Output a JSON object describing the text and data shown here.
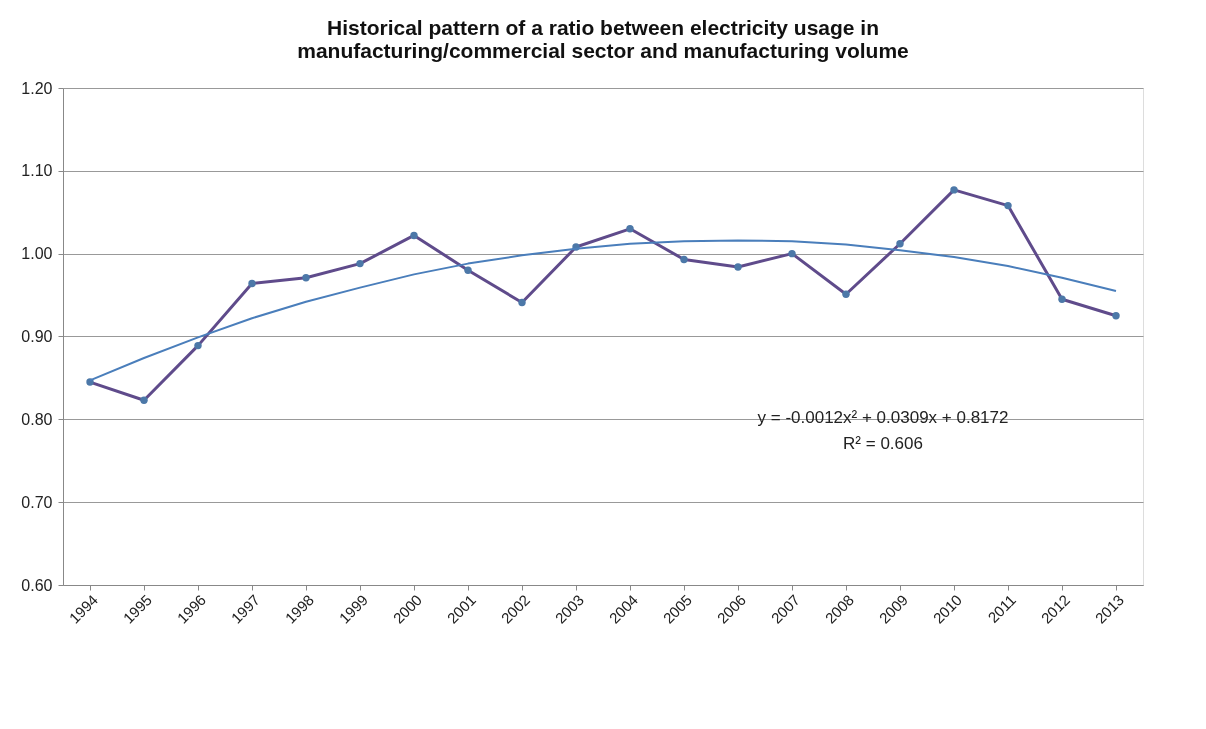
{
  "chart_data": {
    "type": "line",
    "title": "Historical pattern of a ratio between electricity usage in manufacturing/commercial sector and manufacturing volume",
    "categories": [
      "1994",
      "1995",
      "1996",
      "1997",
      "1998",
      "1999",
      "2000",
      "2001",
      "2002",
      "2003",
      "2004",
      "2005",
      "2006",
      "2007",
      "2008",
      "2009",
      "2010",
      "2011",
      "2012",
      "2013"
    ],
    "series": [
      {
        "color": "#5f4b8b",
        "marker": "circle",
        "values": [
          0.845,
          0.823,
          0.889,
          0.964,
          0.971,
          0.988,
          1.022,
          0.98,
          0.941,
          1.008,
          1.03,
          0.993,
          0.984,
          1.0,
          0.951,
          1.012,
          1.077,
          1.058,
          0.945,
          0.925
        ]
      },
      {
        "color": "#4a7ebb",
        "marker": "none",
        "values": [
          0.847,
          0.874,
          0.899,
          0.922,
          0.942,
          0.959,
          0.975,
          0.988,
          0.998,
          1.006,
          1.012,
          1.015,
          1.016,
          1.015,
          1.011,
          1.004,
          0.996,
          0.985,
          0.971,
          0.955
        ]
      }
    ],
    "annotations": [
      "y = -0.0012x² + 0.0309x + 0.8172",
      "R² = 0.606"
    ],
    "ylim": [
      0.6,
      1.2
    ],
    "yticks": [
      {
        "value": 0.6,
        "label": "0.60"
      },
      {
        "value": 0.7,
        "label": "0.70"
      },
      {
        "value": 0.8,
        "label": "0.80"
      },
      {
        "value": 0.9,
        "label": "0.90"
      },
      {
        "value": 1.0,
        "label": "1.00"
      },
      {
        "value": 1.1,
        "label": "1.10"
      },
      {
        "value": 1.2,
        "label": "1.20"
      }
    ],
    "grid": "y",
    "line_style": "solid"
  }
}
